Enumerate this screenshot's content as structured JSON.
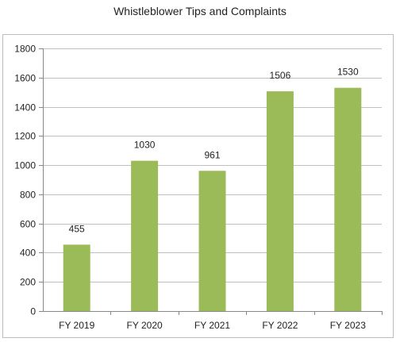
{
  "chart_data": {
    "type": "bar",
    "title": "Whistleblower Tips and Complaints",
    "xlabel": "",
    "ylabel": "",
    "categories": [
      "FY 2019",
      "FY 2020",
      "FY 2021",
      "FY 2022",
      "FY 2023"
    ],
    "values": [
      455,
      1030,
      961,
      1506,
      1530
    ],
    "data_labels": [
      "455",
      "1030",
      "961",
      "1506",
      "1530"
    ],
    "ylim": [
      0,
      1800
    ],
    "yticks": [
      0,
      200,
      400,
      600,
      800,
      1000,
      1200,
      1400,
      1600,
      1800
    ],
    "ytick_labels": [
      "0",
      "200",
      "400",
      "600",
      "800",
      "1000",
      "1200",
      "1400",
      "1600",
      "1800"
    ],
    "grid": true,
    "legend": "none",
    "bar_color": "#9bbb59",
    "grid_color": "#c0c0c0",
    "axis_color": "#888888"
  }
}
